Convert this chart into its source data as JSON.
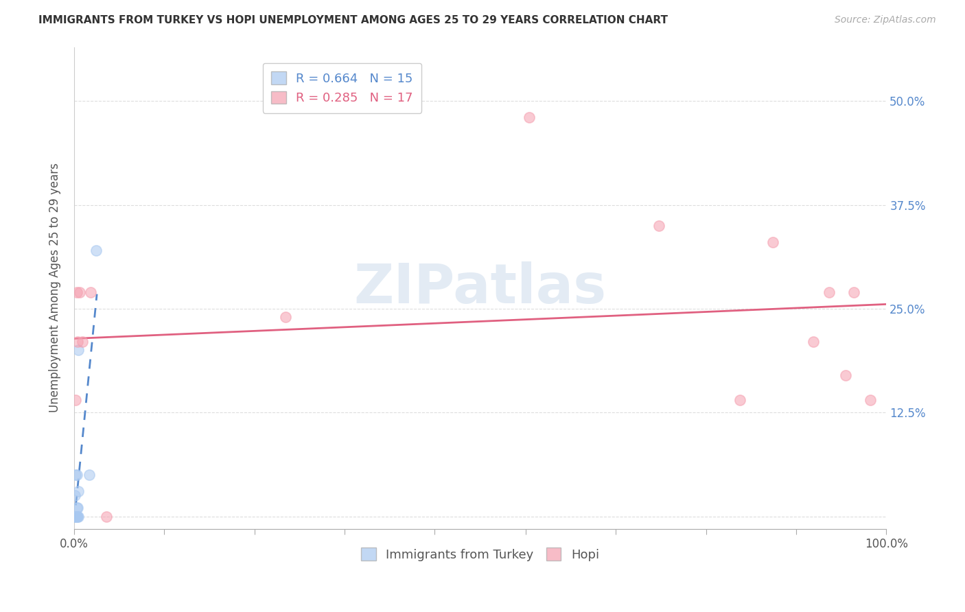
{
  "title": "IMMIGRANTS FROM TURKEY VS HOPI UNEMPLOYMENT AMONG AGES 25 TO 29 YEARS CORRELATION CHART",
  "source": "Source: ZipAtlas.com",
  "ylabel": "Unemployment Among Ages 25 to 29 years",
  "xlim": [
    0,
    1.0
  ],
  "ylim": [
    -0.015,
    0.565
  ],
  "xticks": [
    0.0,
    0.111,
    0.222,
    0.333,
    0.444,
    0.556,
    0.667,
    0.778,
    0.889,
    1.0
  ],
  "xticklabels": [
    "0.0%",
    "",
    "",
    "",
    "",
    "",
    "",
    "",
    "",
    "100.0%"
  ],
  "yticks": [
    0.0,
    0.125,
    0.25,
    0.375,
    0.5
  ],
  "right_yticklabels": [
    "",
    "12.5%",
    "25.0%",
    "37.5%",
    "50.0%"
  ],
  "turkey_R": 0.664,
  "turkey_N": 15,
  "hopi_R": 0.285,
  "hopi_N": 17,
  "turkey_color": "#a8c8f0",
  "hopi_color": "#f5a0b0",
  "turkey_line_color": "#5588cc",
  "hopi_line_color": "#e06080",
  "turkey_x": [
    0.001,
    0.001,
    0.002,
    0.002,
    0.003,
    0.003,
    0.003,
    0.003,
    0.004,
    0.004,
    0.005,
    0.005,
    0.005,
    0.019,
    0.027
  ],
  "turkey_y": [
    0.0,
    0.025,
    0.0,
    0.05,
    0.01,
    0.0,
    0.0,
    0.05,
    0.0,
    0.01,
    0.0,
    0.03,
    0.2,
    0.05,
    0.32
  ],
  "hopi_x": [
    0.002,
    0.003,
    0.004,
    0.007,
    0.01,
    0.02,
    0.72,
    0.82,
    0.86,
    0.91,
    0.93,
    0.95,
    0.96,
    0.98,
    0.56,
    0.26,
    0.04
  ],
  "hopi_y": [
    0.14,
    0.27,
    0.21,
    0.27,
    0.21,
    0.27,
    0.35,
    0.14,
    0.33,
    0.21,
    0.27,
    0.17,
    0.27,
    0.14,
    0.48,
    0.24,
    0.0
  ],
  "background_color": "#ffffff",
  "grid_color": "#dddddd",
  "watermark_color": "#c8d8ea"
}
